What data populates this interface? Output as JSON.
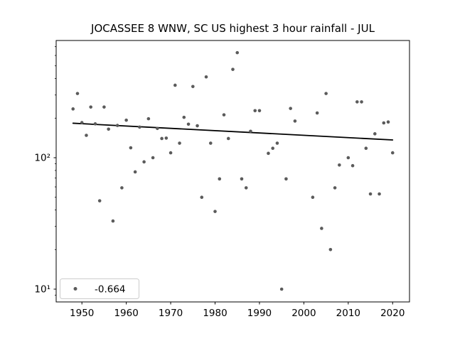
{
  "figure": {
    "background": "#ffffff"
  },
  "chart_data": {
    "type": "scatter",
    "title": "JOCASSEE 8 WNW, SC US highest 3 hour rainfall - JUL",
    "xlabel": "",
    "ylabel": "",
    "x_axis": {
      "scale": "linear",
      "ticks": [
        1950,
        1960,
        1970,
        1980,
        1990,
        2000,
        2010,
        2020
      ],
      "range": [
        1944.2,
        2023.8
      ]
    },
    "y_axis": {
      "scale": "log",
      "major_ticks": [
        10,
        100
      ],
      "major_tick_labels": [
        "10¹",
        "10²"
      ],
      "minor_ticks": [
        9,
        20,
        30,
        40,
        50,
        60,
        70,
        80,
        90,
        200,
        300,
        400,
        500,
        600,
        700
      ],
      "range": [
        8.1,
        776
      ]
    },
    "grid": "off",
    "legend": {
      "label": "-0.664",
      "position": "lower-left"
    },
    "marker_color": "#5b5b5b",
    "trend_line": {
      "color": "#000000",
      "x": [
        1948,
        2020
      ],
      "y": [
        183,
        136.5
      ]
    },
    "points": [
      [
        1948,
        235
      ],
      [
        1949,
        308
      ],
      [
        1950,
        185
      ],
      [
        1951,
        148
      ],
      [
        1952,
        243
      ],
      [
        1953,
        181
      ],
      [
        1954,
        47
      ],
      [
        1955,
        243
      ],
      [
        1956,
        165
      ],
      [
        1957,
        33
      ],
      [
        1958,
        176
      ],
      [
        1959,
        59
      ],
      [
        1960,
        193
      ],
      [
        1961,
        119
      ],
      [
        1962,
        78
      ],
      [
        1963,
        171
      ],
      [
        1964,
        93
      ],
      [
        1965,
        198
      ],
      [
        1966,
        100
      ],
      [
        1967,
        167
      ],
      [
        1968,
        140
      ],
      [
        1969,
        141
      ],
      [
        1970,
        109
      ],
      [
        1971,
        356
      ],
      [
        1972,
        129
      ],
      [
        1973,
        203
      ],
      [
        1974,
        180
      ],
      [
        1975,
        348
      ],
      [
        1976,
        175
      ],
      [
        1977,
        50
      ],
      [
        1978,
        412
      ],
      [
        1979,
        129
      ],
      [
        1980,
        39
      ],
      [
        1981,
        69
      ],
      [
        1982,
        212
      ],
      [
        1983,
        140
      ],
      [
        1984,
        470
      ],
      [
        1985,
        630
      ],
      [
        1986,
        69
      ],
      [
        1987,
        59
      ],
      [
        1988,
        159
      ],
      [
        1989,
        228
      ],
      [
        1990,
        228
      ],
      [
        1992,
        108
      ],
      [
        1993,
        118
      ],
      [
        1994,
        129
      ],
      [
        1995,
        10
      ],
      [
        1996,
        69
      ],
      [
        1997,
        237
      ],
      [
        1998,
        190
      ],
      [
        2002,
        50
      ],
      [
        2003,
        219
      ],
      [
        2004,
        29
      ],
      [
        2005,
        308
      ],
      [
        2006,
        20
      ],
      [
        2007,
        59
      ],
      [
        2008,
        88
      ],
      [
        2010,
        100
      ],
      [
        2011,
        87
      ],
      [
        2012,
        266
      ],
      [
        2013,
        266
      ],
      [
        2014,
        118
      ],
      [
        2015,
        53
      ],
      [
        2016,
        152
      ],
      [
        2017,
        53
      ],
      [
        2018,
        184
      ],
      [
        2019,
        187
      ],
      [
        2020,
        109
      ]
    ]
  }
}
